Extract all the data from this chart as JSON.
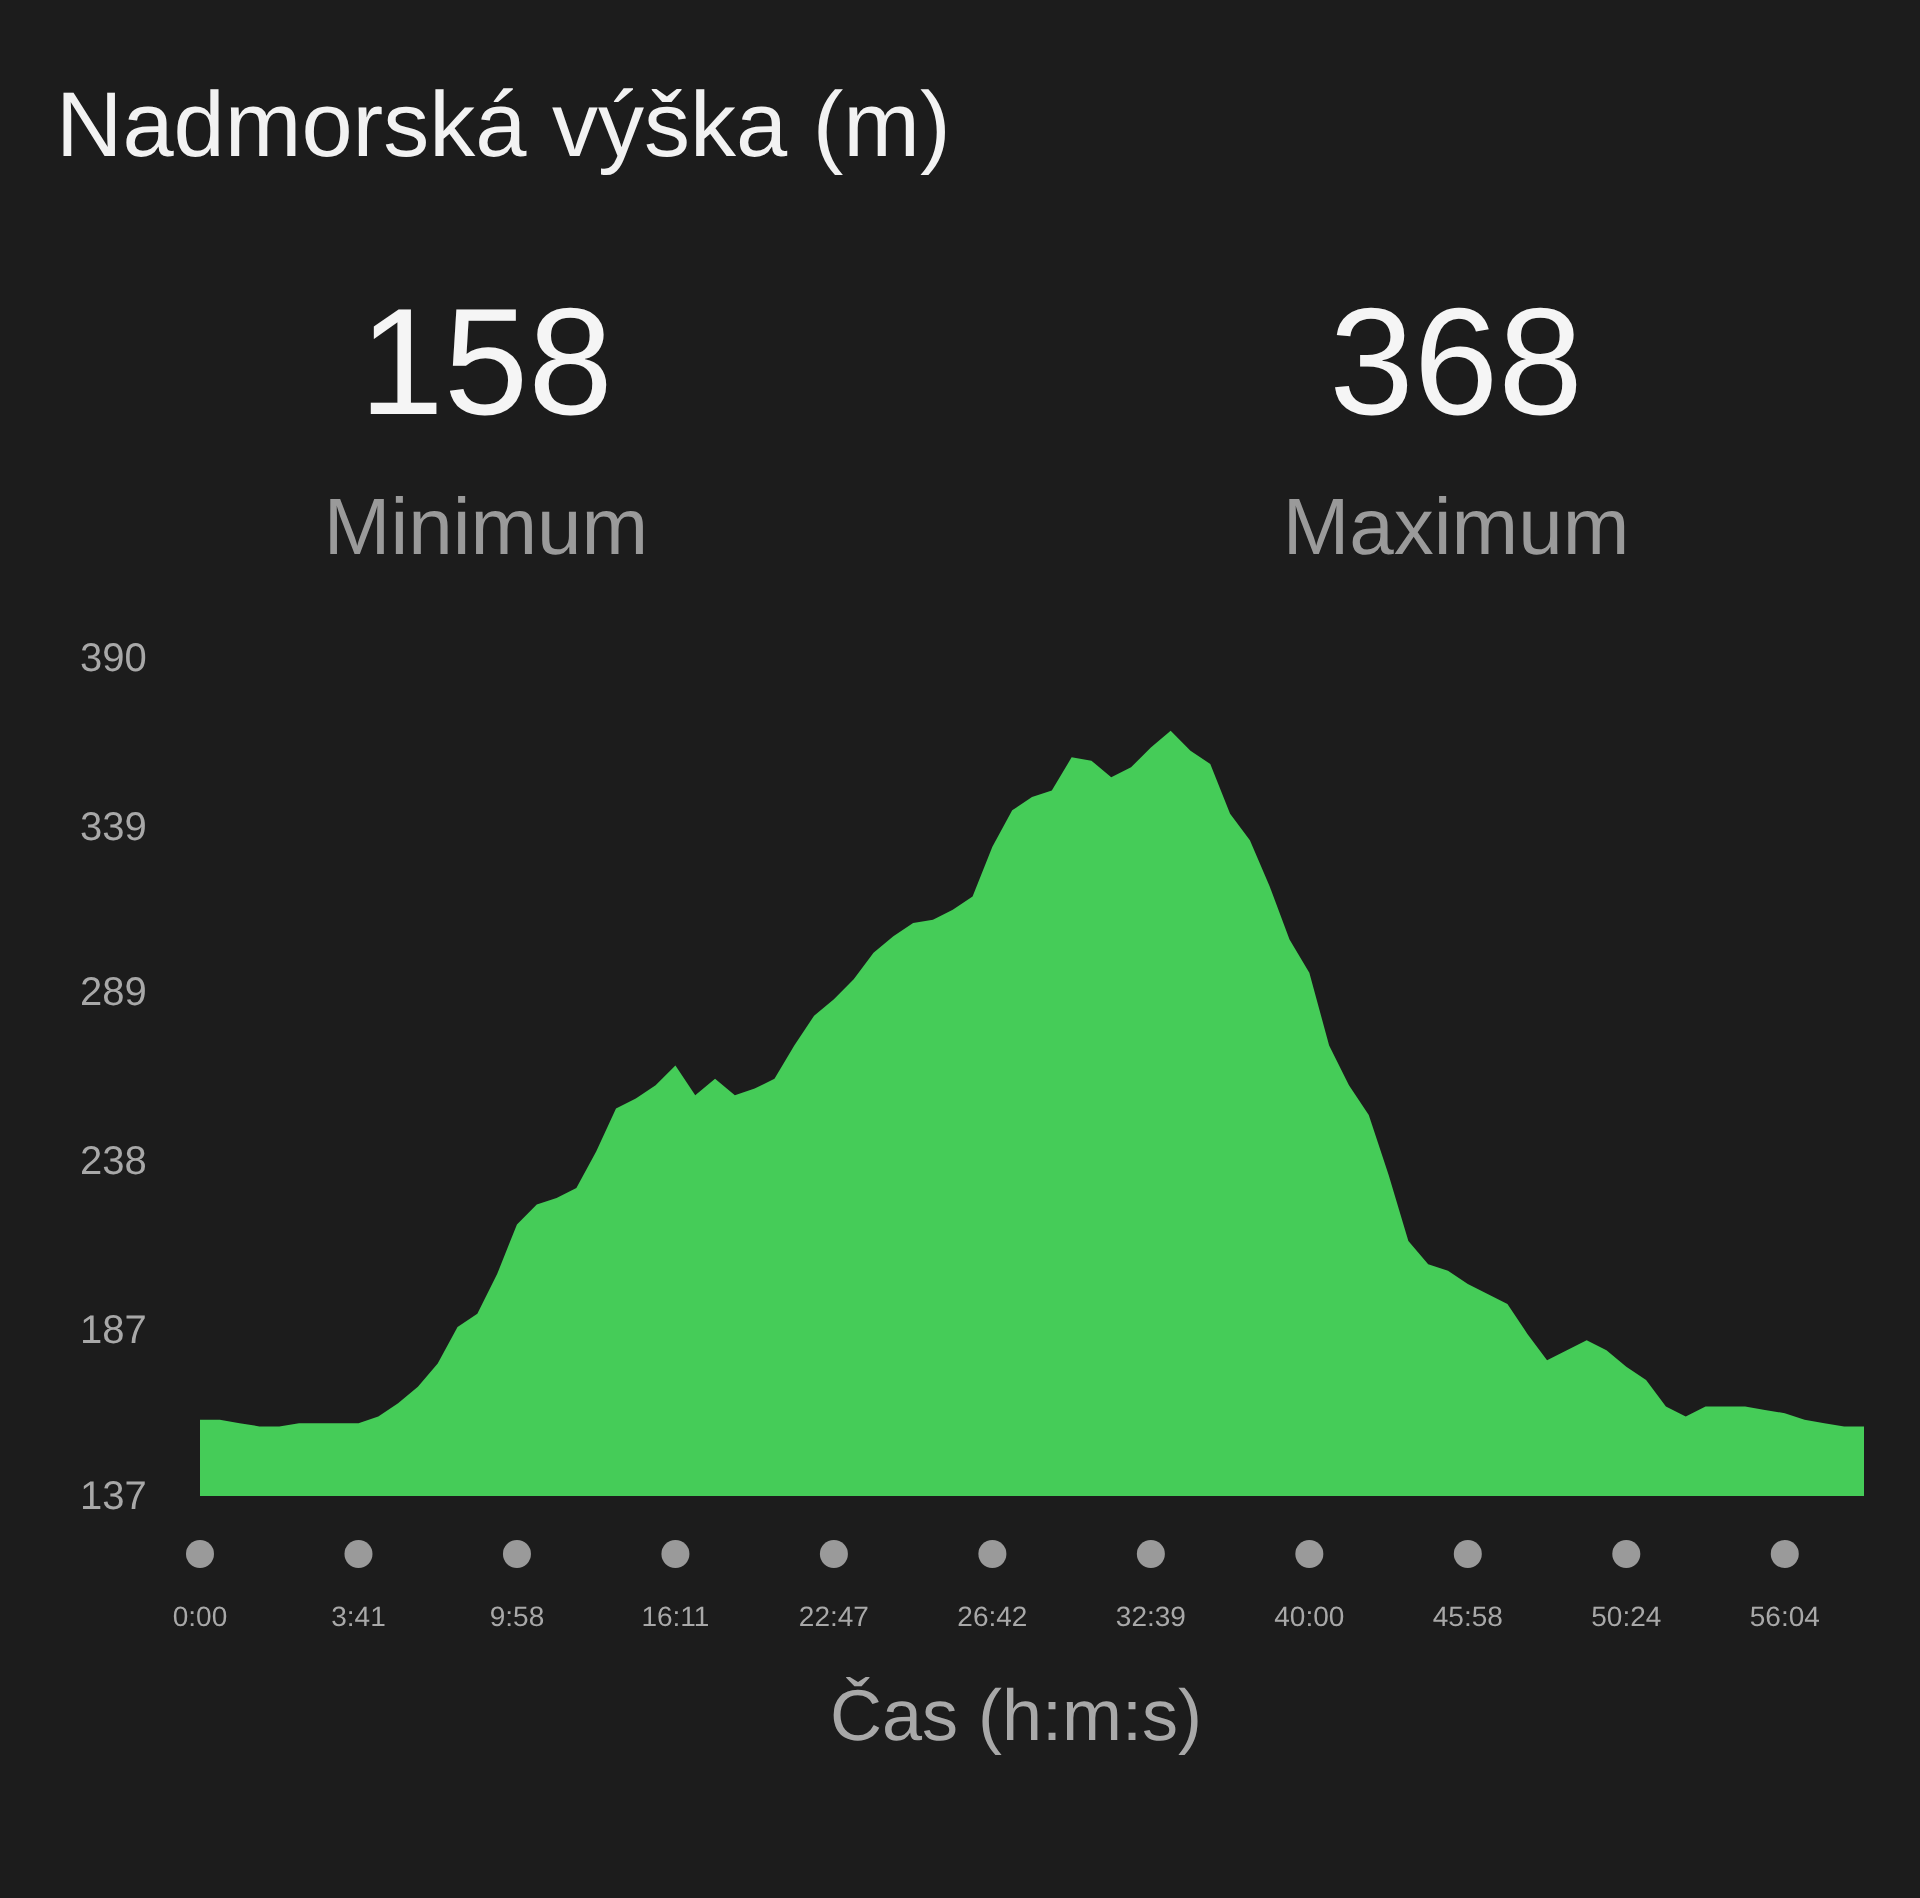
{
  "chart_data": {
    "type": "area",
    "title": "Nadmorská výška (m)",
    "xlabel": "Čas (h:m:s)",
    "annotations": [
      "158",
      "Minimum",
      "368",
      "Maximum"
    ],
    "categories": [
      "0:00",
      null,
      null,
      null,
      null,
      null,
      null,
      null,
      "3:41",
      null,
      null,
      null,
      null,
      null,
      null,
      null,
      "9:58",
      null,
      null,
      null,
      null,
      null,
      null,
      null,
      "16:11",
      null,
      null,
      null,
      null,
      null,
      null,
      null,
      "22:47",
      null,
      null,
      null,
      null,
      null,
      null,
      null,
      "26:42",
      null,
      null,
      null,
      null,
      null,
      null,
      null,
      "32:39",
      null,
      null,
      null,
      null,
      null,
      null,
      null,
      "40:00",
      null,
      null,
      null,
      null,
      null,
      null,
      null,
      "45:58",
      null,
      null,
      null,
      null,
      null,
      null,
      null,
      "50:24",
      null,
      null,
      null,
      null,
      null,
      null,
      null,
      "56:04",
      null,
      null,
      null,
      null
    ],
    "series": [
      {
        "color": "#45cc58",
        "values": [
          160,
          160,
          159,
          158,
          158,
          159,
          159,
          159,
          159,
          161,
          165,
          170,
          177,
          188,
          192,
          204,
          219,
          225,
          227,
          230,
          241,
          254,
          257,
          261,
          267,
          258,
          263,
          258,
          260,
          263,
          273,
          282,
          287,
          293,
          301,
          306,
          310,
          311,
          314,
          318,
          333,
          344,
          348,
          350,
          360,
          359,
          354,
          357,
          363,
          368,
          362,
          358,
          343,
          335,
          321,
          305,
          295,
          273,
          261,
          252,
          234,
          214,
          207,
          205,
          201,
          198,
          195,
          186,
          178,
          181,
          184,
          181,
          176,
          172,
          164,
          161,
          164,
          164,
          164,
          163,
          162,
          160,
          159,
          158,
          158
        ]
      }
    ],
    "ylim": [
      137,
      390
    ],
    "yticks": [
      137,
      187,
      238,
      289,
      339,
      390
    ],
    "grid": false
  }
}
